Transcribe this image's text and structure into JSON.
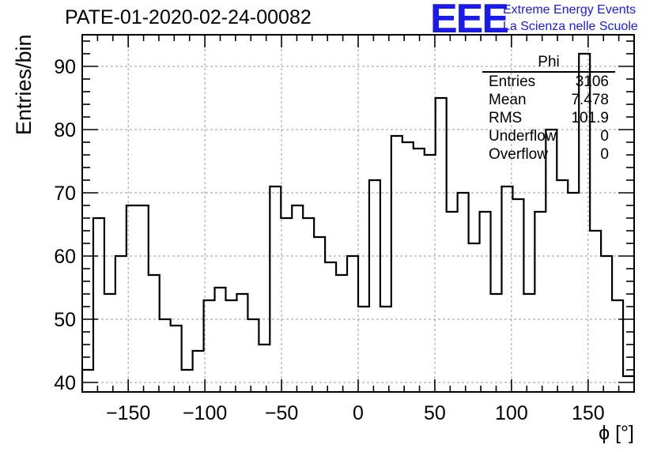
{
  "title": "PATE-01-2020-02-24-00082",
  "logo": {
    "text": "EEE",
    "line1": "Extreme Energy Events",
    "line2": "La Scienza nelle Scuole",
    "color": "#1a1aee"
  },
  "stats_box": {
    "title": "Phi",
    "rows": [
      {
        "label": "Entries",
        "value": "3106"
      },
      {
        "label": "Mean",
        "value": "7.478"
      },
      {
        "label": "RMS",
        "value": "101.9"
      },
      {
        "label": "Underflow",
        "value": "0"
      },
      {
        "label": "Overflow",
        "value": "0"
      }
    ]
  },
  "chart_data": {
    "type": "histogram",
    "xlabel": "ϕ [°]",
    "ylabel": "Entries/bin",
    "xlim": [
      -180,
      180
    ],
    "ylim": [
      38.5,
      95
    ],
    "bin_width": 7.2,
    "grid": true,
    "xticks": [
      -150,
      -100,
      -50,
      0,
      50,
      100,
      150
    ],
    "yticks": [
      40,
      50,
      60,
      70,
      80,
      90
    ],
    "values": [
      42,
      66,
      54,
      60,
      68,
      68,
      57,
      50,
      49,
      42,
      45,
      53,
      55,
      53,
      54,
      50,
      46,
      71,
      66,
      68,
      66,
      63,
      59,
      57,
      60,
      52,
      72,
      52,
      79,
      78,
      77,
      76,
      85,
      67,
      70,
      62,
      67,
      54,
      71,
      69,
      54,
      67,
      80,
      72,
      70,
      92,
      64,
      60,
      53,
      41
    ]
  }
}
